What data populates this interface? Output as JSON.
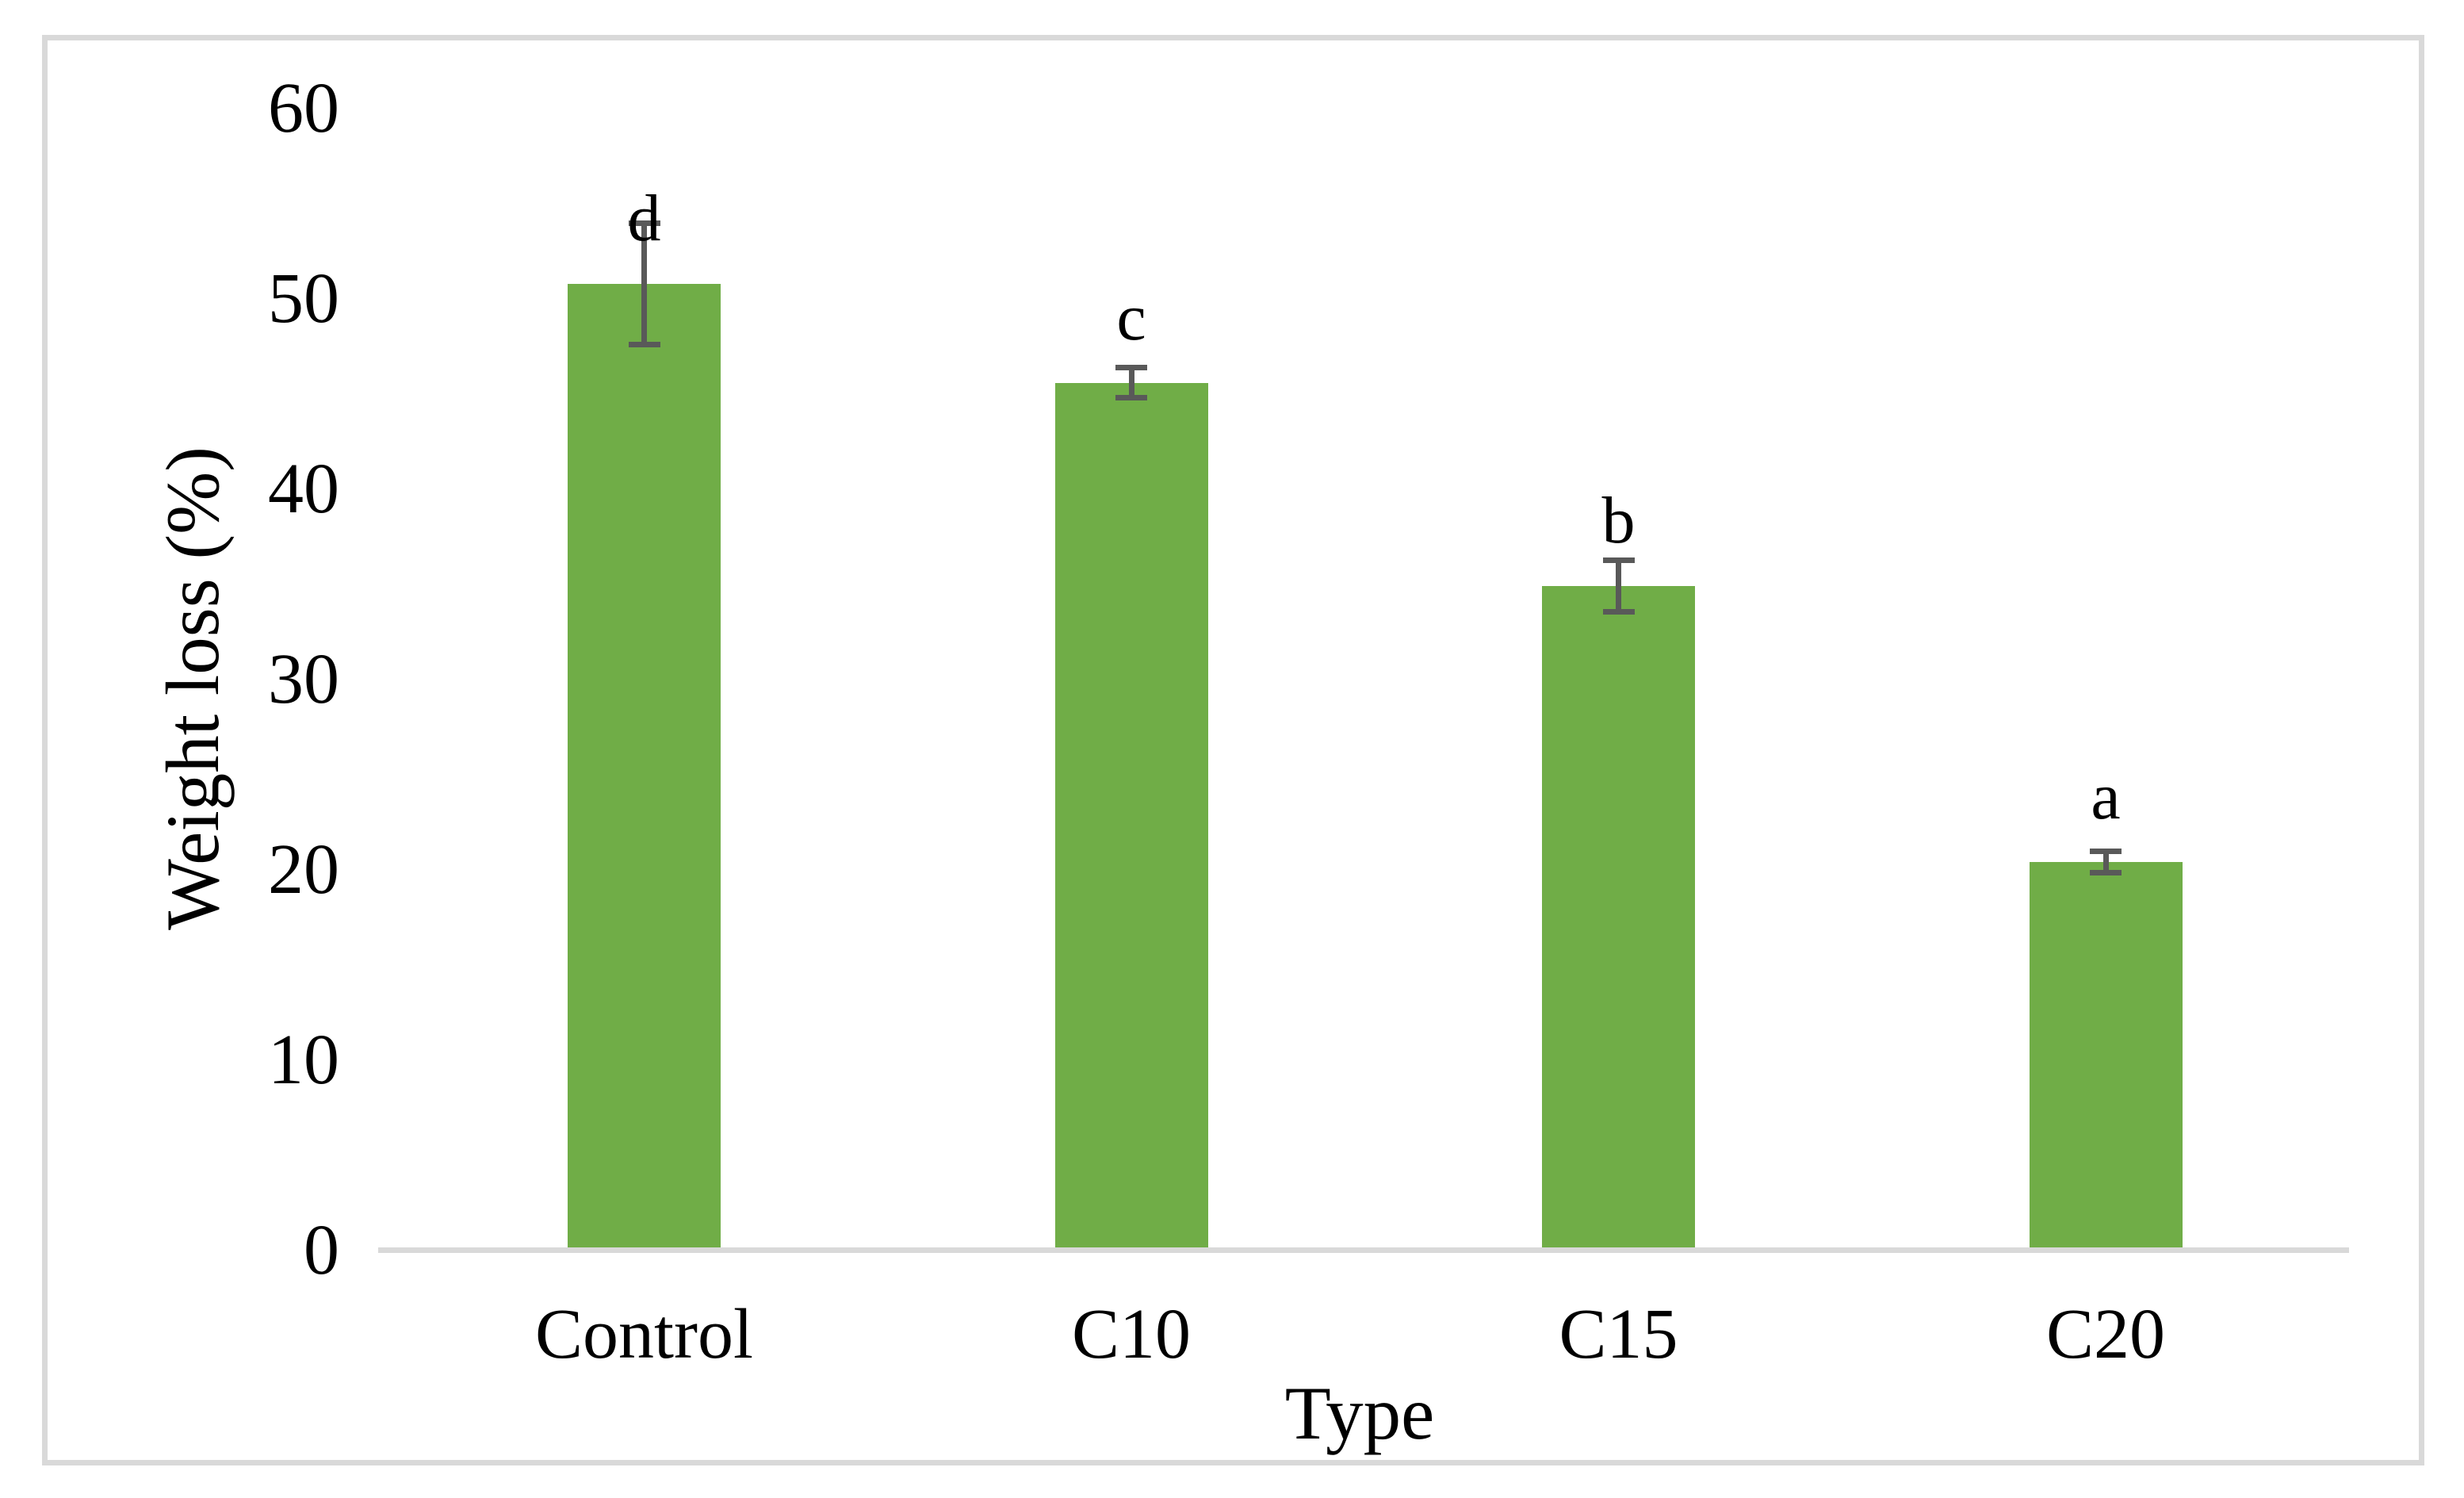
{
  "figure": {
    "background_color": "#FFFFFF",
    "frame_color": "#D9D9D9",
    "axis_line_color": "#D9D9D9",
    "text_color": "#000000"
  },
  "chart_data": {
    "type": "bar",
    "title": "",
    "xlabel": "Type",
    "ylabel": "Weight loss (%)",
    "categories": [
      "Control",
      "C10",
      "C15",
      "C20"
    ],
    "values": [
      50.8,
      45.6,
      34.9,
      20.4
    ],
    "error_bars": [
      3.2,
      0.8,
      1.35,
      0.55
    ],
    "significance_letters": [
      "d",
      "c",
      "b",
      "a"
    ],
    "bar_color": "#70AD47",
    "error_bar_color": "#595959",
    "ylim": [
      0,
      60
    ],
    "yticks": [
      0,
      10,
      20,
      30,
      40,
      50,
      60
    ],
    "grid": false,
    "legend_position": "none"
  }
}
